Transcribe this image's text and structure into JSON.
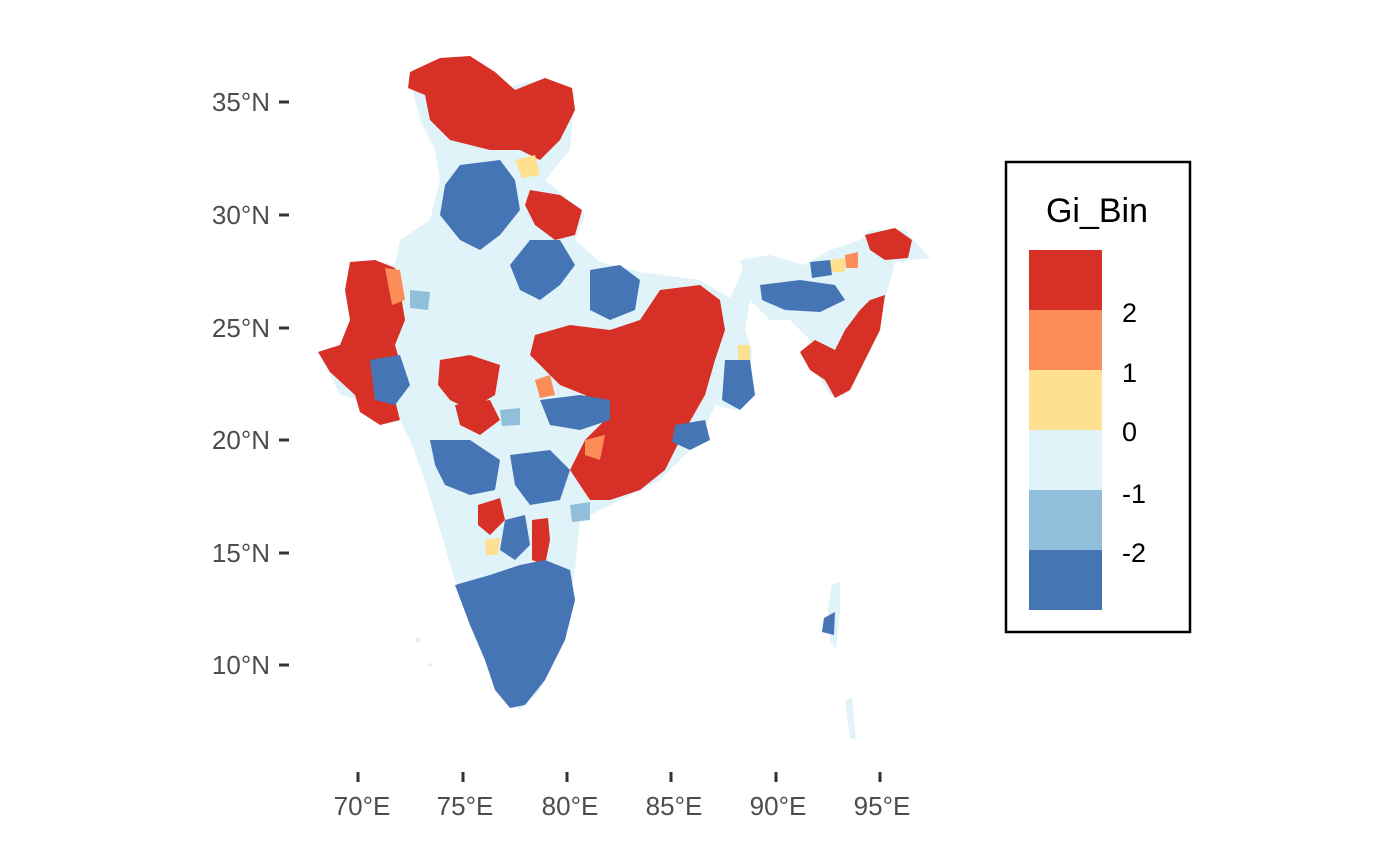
{
  "chart_data": {
    "type": "map",
    "subject_regions": "districts",
    "x_ticks": [
      "70°E",
      "75°E",
      "80°E",
      "85°E",
      "90°E",
      "95°E"
    ],
    "y_ticks": [
      "35°N",
      "30°N",
      "25°N",
      "20°N",
      "15°N",
      "10°N"
    ],
    "x_tick_values": [
      70,
      75,
      80,
      85,
      90,
      95
    ],
    "y_tick_values": [
      35,
      30,
      25,
      20,
      15,
      10
    ],
    "legend": {
      "title": "Gi_Bin",
      "placement": "right",
      "labels": [
        "2",
        "1",
        "0",
        "-1",
        "-2"
      ],
      "colors": [
        "#d73027",
        "#fc8d59",
        "#fee090",
        "#e0f3f8",
        "#91bfdb",
        "#4575b4"
      ]
    },
    "background": "#ffffff",
    "grid": false
  }
}
